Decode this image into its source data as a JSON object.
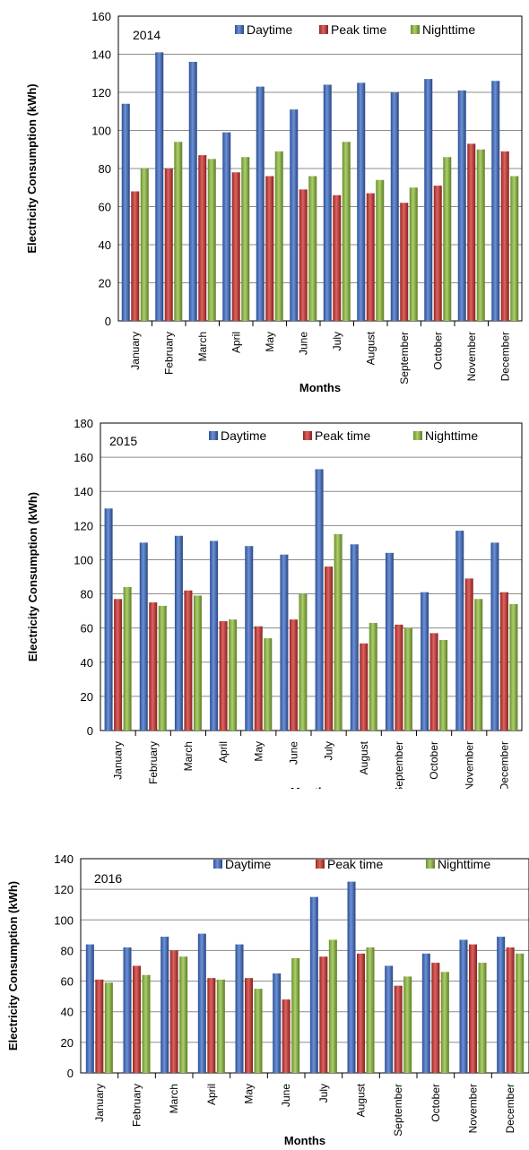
{
  "colors": {
    "daytime": "#3c6cc8",
    "peak": "#d0302c",
    "nighttime": "#8fbf3a",
    "grid": "#8c8c8c",
    "axis": "#000000"
  },
  "chart_data": [
    {
      "type": "bar",
      "title": "2014",
      "xlabel": "Months",
      "ylabel": "Electricity Consumption (kWh)",
      "ylim": [
        0,
        160
      ],
      "yticks": [
        0,
        20,
        40,
        60,
        80,
        100,
        120,
        140,
        160
      ],
      "grid": true,
      "legend_position": "top-right",
      "categories": [
        "January",
        "February",
        "March",
        "April",
        "May",
        "June",
        "July",
        "August",
        "September",
        "October",
        "November",
        "December"
      ],
      "series": [
        {
          "name": "Daytime",
          "values": [
            114,
            141,
            136,
            99,
            123,
            111,
            124,
            125,
            120,
            127,
            121,
            126
          ]
        },
        {
          "name": "Peak time",
          "values": [
            68,
            80,
            87,
            78,
            76,
            69,
            66,
            67,
            62,
            71,
            93,
            89
          ]
        },
        {
          "name": "Nighttime",
          "values": [
            80,
            94,
            85,
            86,
            89,
            76,
            94,
            74,
            70,
            86,
            90,
            76
          ]
        }
      ]
    },
    {
      "type": "bar",
      "title": "2015",
      "xlabel": "Months",
      "ylabel": "Electricity Consumption (kWh)",
      "ylim": [
        0,
        180
      ],
      "yticks": [
        0,
        20,
        40,
        60,
        80,
        100,
        120,
        140,
        160,
        180
      ],
      "grid": true,
      "legend_position": "top",
      "categories": [
        "January",
        "February",
        "March",
        "April",
        "May",
        "June",
        "July",
        "August",
        "September",
        "October",
        "November",
        "December"
      ],
      "series": [
        {
          "name": "Daytime",
          "values": [
            130,
            110,
            114,
            111,
            108,
            103,
            153,
            109,
            104,
            81,
            117,
            110
          ]
        },
        {
          "name": "Peak time",
          "values": [
            77,
            75,
            82,
            64,
            61,
            65,
            96,
            51,
            62,
            57,
            89,
            81
          ]
        },
        {
          "name": "Nighttime",
          "values": [
            84,
            73,
            79,
            65,
            54,
            80,
            115,
            63,
            60,
            53,
            77,
            74
          ]
        }
      ]
    },
    {
      "type": "bar",
      "title": "2016",
      "xlabel": "Months",
      "ylabel": "Electricity Consumption (kWh)",
      "ylim": [
        0,
        140
      ],
      "yticks": [
        0,
        20,
        40,
        60,
        80,
        100,
        120,
        140
      ],
      "grid": true,
      "legend_position": "top-right",
      "categories": [
        "January",
        "February",
        "March",
        "April",
        "May",
        "June",
        "July",
        "August",
        "September",
        "October",
        "November",
        "December"
      ],
      "series": [
        {
          "name": "Daytime",
          "values": [
            84,
            82,
            89,
            91,
            84,
            65,
            115,
            125,
            70,
            78,
            87,
            89
          ]
        },
        {
          "name": "Peak time",
          "values": [
            61,
            70,
            80,
            62,
            62,
            48,
            76,
            78,
            57,
            72,
            84,
            82
          ]
        },
        {
          "name": "Nighttime",
          "values": [
            59,
            64,
            76,
            61,
            55,
            75,
            87,
            82,
            63,
            66,
            72,
            78
          ]
        }
      ]
    }
  ]
}
